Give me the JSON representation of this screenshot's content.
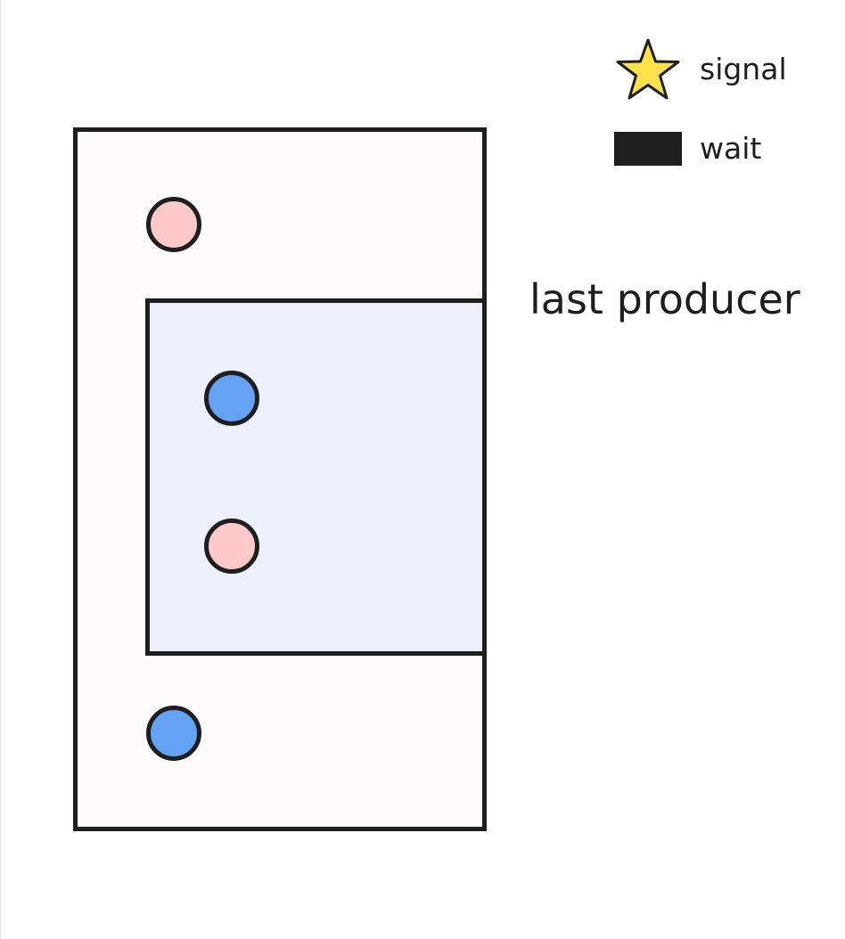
{
  "legend": {
    "items": [
      {
        "icon": "star-icon",
        "label": "signal",
        "color": "#ffe14a"
      },
      {
        "icon": "filled-rectangle-icon",
        "label": "wait",
        "color": "#1e1e1e"
      }
    ]
  },
  "diagram": {
    "outer_region": {
      "fill": "#fcfafa",
      "stroke": "#1e1e1e"
    },
    "inner_region": {
      "label": "last producer",
      "fill": "#edf0fb",
      "stroke": "#1e1e1e"
    },
    "nodes": [
      {
        "color": "#ffc9c9",
        "region": "outer"
      },
      {
        "color": "#64a2f5",
        "region": "inner"
      },
      {
        "color": "#ffc9c9",
        "region": "inner"
      },
      {
        "color": "#64a2f5",
        "region": "outer"
      }
    ]
  }
}
